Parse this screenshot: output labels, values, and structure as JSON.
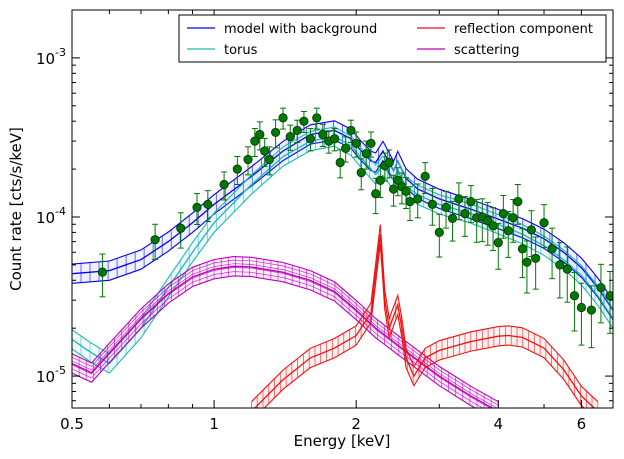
{
  "chart_data": {
    "type": "line",
    "xlabel": "Energy [keV]",
    "ylabel": "Count rate [cts/s/keV]",
    "x_scale": "log",
    "y_scale": "log",
    "xlim": [
      0.5,
      7.0
    ],
    "ylim": [
      6.3e-06,
      0.002
    ],
    "x_ticks": [
      {
        "value": 0.5,
        "label": "0.5"
      },
      {
        "value": 1,
        "label": "1"
      },
      {
        "value": 2,
        "label": "2"
      },
      {
        "value": 4,
        "label": "4"
      },
      {
        "value": 6,
        "label": "6"
      }
    ],
    "y_ticks": [
      {
        "value": 1e-05,
        "mantissa": "10",
        "exp": "-5"
      },
      {
        "value": 0.0001,
        "mantissa": "10",
        "exp": "-4"
      },
      {
        "value": 0.001,
        "mantissa": "10",
        "exp": "-3"
      }
    ],
    "legend": {
      "placement": "top-right",
      "columns": 2,
      "entries": [
        {
          "label": "model with background",
          "color": "#0000ee"
        },
        {
          "label": "reflection component",
          "color": "#ee1111"
        },
        {
          "label": "torus",
          "color": "#1ab8b8"
        },
        {
          "label": "scattering",
          "color": "#bb00bb"
        }
      ]
    },
    "series": [
      {
        "name": "model with background",
        "color": "#0000ee",
        "band": true,
        "x": [
          0.5,
          0.6,
          0.7,
          0.8,
          0.9,
          1.0,
          1.2,
          1.4,
          1.6,
          1.8,
          1.95,
          2.05,
          2.15,
          2.2,
          2.28,
          2.4,
          2.45,
          2.55,
          2.7,
          3.0,
          3.5,
          4.0,
          4.5,
          5.0,
          5.5,
          6.0,
          6.5,
          7.0
        ],
        "y": [
          4.4e-05,
          4.6e-05,
          5.4e-05,
          7e-05,
          9.2e-05,
          0.00012,
          0.00018,
          0.00026,
          0.00033,
          0.00035,
          0.00031,
          0.00026,
          0.000225,
          0.00022,
          0.00026,
          0.000195,
          0.000225,
          0.000175,
          0.00015,
          0.00013,
          0.000112,
          9.7e-05,
          8.5e-05,
          7.3e-05,
          6e-05,
          4.8e-05,
          3.6e-05,
          2.6e-05
        ]
      },
      {
        "name": "torus",
        "color": "#1ab8b8",
        "band": true,
        "x": [
          0.5,
          0.55,
          0.6,
          0.7,
          0.8,
          0.9,
          1.0,
          1.2,
          1.4,
          1.6,
          1.8,
          1.95,
          2.05,
          2.15,
          2.2,
          2.28,
          2.4,
          2.45,
          2.55,
          2.7,
          3.0,
          3.5,
          4.0,
          4.5,
          5.0,
          5.5,
          6.0,
          6.5,
          7.0
        ],
        "y": [
          1.7e-05,
          1.4e-05,
          1.2e-05,
          2e-05,
          3.6e-05,
          6e-05,
          9.2e-05,
          0.00016,
          0.00024,
          0.0003,
          0.00032,
          0.00028,
          0.000235,
          0.0002,
          0.000185,
          0.00021,
          0.00017,
          0.000195,
          0.000155,
          0.000138,
          0.00012,
          0.000105,
          9e-05,
          7.8e-05,
          6.6e-05,
          5.4e-05,
          4.3e-05,
          3.2e-05,
          2.3e-05
        ]
      },
      {
        "name": "scattering",
        "color": "#bb00bb",
        "band": true,
        "x": [
          0.5,
          0.55,
          0.6,
          0.7,
          0.8,
          0.9,
          1.0,
          1.1,
          1.2,
          1.4,
          1.6,
          1.8,
          2.0,
          2.2,
          2.5,
          3.0,
          3.5,
          4.0
        ],
        "y": [
          1.2e-05,
          1.05e-05,
          1.4e-05,
          2.3e-05,
          3.3e-05,
          4.2e-05,
          4.7e-05,
          4.9e-05,
          4.85e-05,
          4.5e-05,
          4e-05,
          3.4e-05,
          2.6e-05,
          2e-05,
          1.5e-05,
          1e-05,
          7.5e-06,
          6e-06
        ]
      },
      {
        "name": "reflection component",
        "color": "#ee1111",
        "band": true,
        "x": [
          1.2,
          1.4,
          1.6,
          1.8,
          2.0,
          2.15,
          2.25,
          2.3,
          2.35,
          2.45,
          2.5,
          2.55,
          2.65,
          2.8,
          3.0,
          3.5,
          4.0,
          4.2,
          4.5,
          5.0,
          5.5,
          6.0,
          6.5
        ],
        "y": [
          6e-06,
          9.5e-06,
          1.3e-05,
          1.5e-05,
          1.8e-05,
          2.5e-05,
          7.8e-05,
          3e-05,
          2e-05,
          2.8e-05,
          2e-05,
          1.3e-05,
          1e-05,
          1.3e-05,
          1.45e-05,
          1.65e-05,
          1.78e-05,
          1.8e-05,
          1.75e-05,
          1.5e-05,
          1.1e-05,
          7.5e-06,
          6e-06
        ]
      }
    ],
    "data_points": {
      "color": "#007700",
      "x": [
        0.58,
        0.75,
        0.85,
        0.92,
        0.97,
        1.05,
        1.12,
        1.18,
        1.22,
        1.25,
        1.28,
        1.31,
        1.35,
        1.4,
        1.45,
        1.5,
        1.55,
        1.6,
        1.65,
        1.7,
        1.75,
        1.8,
        1.85,
        1.9,
        1.95,
        2.0,
        2.05,
        2.1,
        2.15,
        2.2,
        2.25,
        2.3,
        2.35,
        2.4,
        2.45,
        2.5,
        2.55,
        2.6,
        2.7,
        2.8,
        2.9,
        3.0,
        3.1,
        3.2,
        3.3,
        3.4,
        3.5,
        3.6,
        3.7,
        3.8,
        3.9,
        4.0,
        4.1,
        4.2,
        4.3,
        4.4,
        4.5,
        4.6,
        4.7,
        4.8,
        5.0,
        5.2,
        5.4,
        5.6,
        5.8,
        6.0,
        6.3,
        6.6,
        6.9
      ],
      "y": [
        4.5e-05,
        7.2e-05,
        8.5e-05,
        0.000115,
        0.00012,
        0.00016,
        0.0002,
        0.00023,
        0.0003,
        0.00033,
        0.00026,
        0.00023,
        0.00034,
        0.00042,
        0.00032,
        0.00035,
        0.0004,
        0.00031,
        0.00042,
        0.00033,
        0.0003,
        0.00031,
        0.00022,
        0.00027,
        0.00035,
        0.00029,
        0.00019,
        0.00025,
        0.00029,
        0.00014,
        0.00017,
        0.00021,
        0.00022,
        0.00015,
        0.00017,
        0.000155,
        0.000145,
        0.000125,
        0.00013,
        0.00018,
        0.00012,
        8e-05,
        0.000115,
        9.8e-05,
        0.00013,
        0.000105,
        0.000125,
        9.9e-05,
        0.0001,
        9.5e-05,
        8.8e-05,
        6.9e-05,
        0.000105,
        8.2e-05,
        9.9e-05,
        0.000125,
        6.3e-05,
        5.2e-05,
        8.3e-05,
        5.5e-05,
        9.2e-05,
        6.3e-05,
        5e-05,
        4.7e-05,
        3.2e-05,
        2.7e-05,
        2.6e-05,
        3.6e-05,
        3.2e-05
      ],
      "err_frac": [
        0.3,
        0.25,
        0.25,
        0.22,
        0.22,
        0.2,
        0.2,
        0.2,
        0.2,
        0.2,
        0.2,
        0.2,
        0.2,
        0.15,
        0.18,
        0.16,
        0.15,
        0.16,
        0.15,
        0.16,
        0.16,
        0.16,
        0.2,
        0.18,
        0.16,
        0.18,
        0.22,
        0.2,
        0.18,
        0.25,
        0.22,
        0.2,
        0.2,
        0.22,
        0.2,
        0.22,
        0.22,
        0.24,
        0.24,
        0.22,
        0.26,
        0.3,
        0.26,
        0.28,
        0.26,
        0.28,
        0.26,
        0.3,
        0.3,
        0.3,
        0.3,
        0.32,
        0.3,
        0.32,
        0.3,
        0.28,
        0.34,
        0.36,
        0.32,
        0.36,
        0.3,
        0.35,
        0.38,
        0.38,
        0.4,
        0.42,
        0.42,
        0.4,
        0.42
      ]
    }
  }
}
